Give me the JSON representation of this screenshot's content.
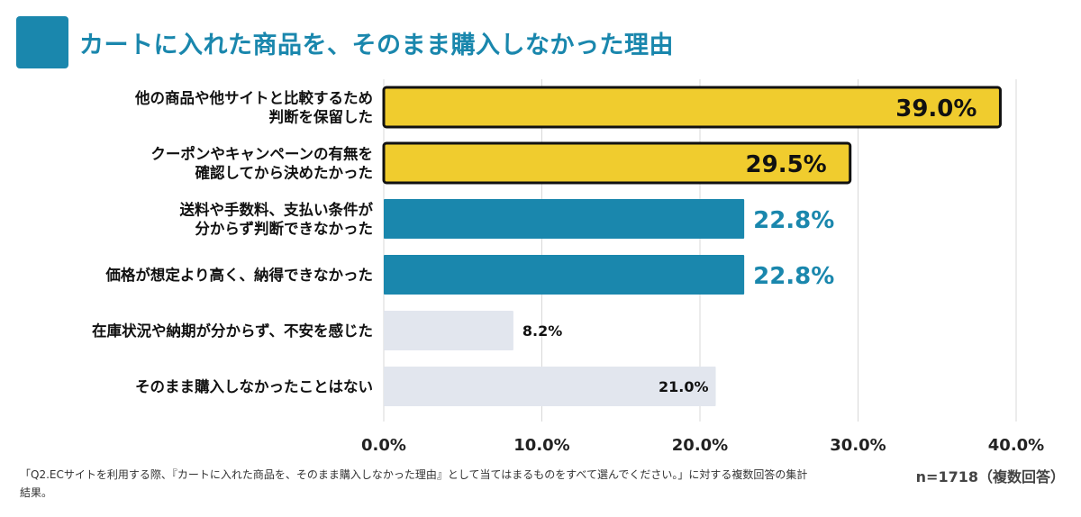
{
  "title": "カートに入れた商品を、そのまま購入しなかった理由",
  "colors": {
    "accent": "#1a87ad",
    "highlight": "#f0cc2e",
    "muted_bar": "#e2e6ee",
    "grid": "#d8d8d8"
  },
  "footnote": "「Q2.ECサイトを利用する際、『カートに入れた商品を、そのまま購入しなかった理由』として当てはまるものをすべて選んでください。」に対する複数回答の集計結果。",
  "sample_size": "n=1718（複数回答）",
  "chart_data": {
    "type": "bar",
    "orientation": "horizontal",
    "categories": [
      [
        "他の商品や他サイトと比較するため",
        "判断を保留した"
      ],
      [
        "クーポンやキャンペーンの有無を",
        "確認してから決めたかった"
      ],
      [
        "送料や手数料、支払い条件が",
        "分からず判断できなかった"
      ],
      [
        "価格が想定より高く、納得できなかった"
      ],
      [
        "在庫状況や納期が分からず、不安を感じた"
      ],
      [
        "そのまま購入しなかったことはない"
      ]
    ],
    "values": [
      39.0,
      29.5,
      22.8,
      22.8,
      8.2,
      21.0
    ],
    "value_labels": [
      "39.0%",
      "29.5%",
      "22.8%",
      "22.8%",
      "8.2%",
      "21.0%"
    ],
    "styles": [
      "highlight",
      "highlight",
      "accent",
      "accent",
      "muted",
      "muted"
    ],
    "xlim": [
      0,
      40
    ],
    "xticks": [
      "0.0%",
      "10.0%",
      "20.0%",
      "30.0%",
      "40.0%"
    ],
    "grid": true
  }
}
